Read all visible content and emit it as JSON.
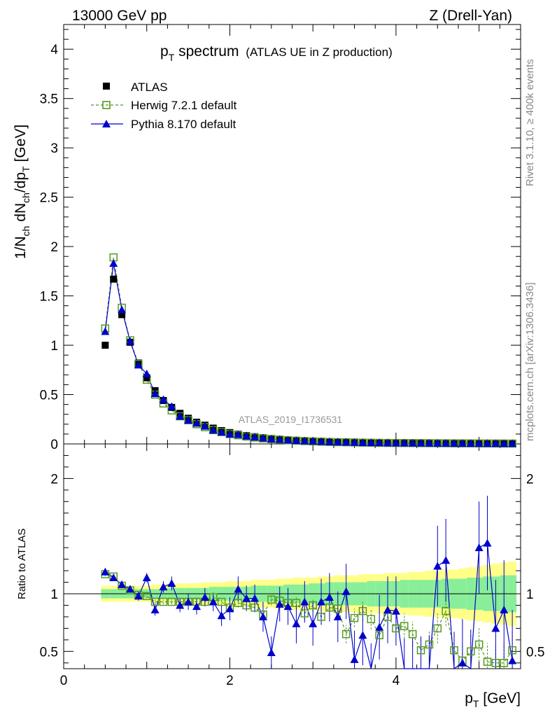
{
  "header": {
    "left": "13000 GeV pp",
    "right": "Z (Drell-Yan)"
  },
  "side": {
    "rivet": "Rivet 3.1.10, ≥ 400k events",
    "mcplots": "mcplots.cern.ch [arXiv:1306.3436]"
  },
  "chart_data": [
    {
      "type": "scatter",
      "title_main": "p",
      "title_sub": "T",
      "title_rest": " spectrum",
      "title_paren": "(ATLAS UE in Z production)",
      "analysis_label": "ATLAS_2019_I1736531",
      "ylabel": "1/N",
      "ylabel_sub1": "ch",
      "ylabel_mid": " dN",
      "ylabel_sub2": "ch",
      "ylabel_end": "/dp",
      "ylabel_sub3": "T",
      "ylabel_unit": " [GeV]",
      "xlim": [
        0,
        5.5
      ],
      "ylim": [
        0,
        4.25
      ],
      "yticks": [
        0,
        0.5,
        1,
        1.5,
        2,
        2.5,
        3,
        3.5,
        4
      ],
      "ytick_labels": [
        "0",
        "0.5",
        "1",
        "1.5",
        "2",
        "2.5",
        "3",
        "3.5",
        "4"
      ],
      "legend": [
        {
          "name": "ATLAS",
          "marker": "filled-square",
          "color": "#000000"
        },
        {
          "name": "Herwig 7.2.1 default",
          "marker": "open-square",
          "color": "#559922"
        },
        {
          "name": "Pythia 8.170 default",
          "marker": "filled-triangle",
          "color": "#0000cc"
        }
      ],
      "x": [
        0.5,
        0.6,
        0.7,
        0.8,
        0.9,
        1.0,
        1.1,
        1.2,
        1.3,
        1.4,
        1.5,
        1.6,
        1.7,
        1.8,
        1.9,
        2.0,
        2.1,
        2.2,
        2.3,
        2.4,
        2.5,
        2.6,
        2.7,
        2.8,
        2.9,
        3.0,
        3.1,
        3.2,
        3.3,
        3.4,
        3.5,
        3.6,
        3.7,
        3.8,
        3.9,
        4.0,
        4.1,
        4.2,
        4.3,
        4.4,
        4.5,
        4.6,
        4.7,
        4.8,
        4.9,
        5.0,
        5.1,
        5.2,
        5.3,
        5.4
      ],
      "series": [
        {
          "name": "ATLAS",
          "values": [
            1.0,
            1.67,
            1.31,
            1.03,
            0.82,
            0.67,
            0.54,
            0.44,
            0.37,
            0.31,
            0.26,
            0.22,
            0.19,
            0.16,
            0.135,
            0.115,
            0.098,
            0.085,
            0.073,
            0.063,
            0.055,
            0.048,
            0.042,
            0.037,
            0.033,
            0.029,
            0.026,
            0.023,
            0.021,
            0.019,
            0.017,
            0.015,
            0.014,
            0.013,
            0.012,
            0.011,
            0.01,
            0.0095,
            0.009,
            0.0085,
            0.008,
            0.0075,
            0.007,
            0.0068,
            0.0065,
            0.006,
            0.0058,
            0.0055,
            0.0053,
            0.005
          ]
        },
        {
          "name": "Herwig 7.2.1 default",
          "values": [
            1.17,
            1.89,
            1.38,
            1.05,
            0.81,
            0.65,
            0.5,
            0.41,
            0.34,
            0.28,
            0.24,
            0.2,
            0.17,
            0.14,
            0.12,
            0.1,
            0.088,
            0.075,
            0.065,
            0.056,
            0.049,
            0.043,
            0.037,
            0.033,
            0.029,
            0.026,
            0.023,
            0.02,
            0.018,
            0.017,
            0.015,
            0.013,
            0.012,
            0.011,
            0.01,
            0.0095,
            0.009,
            0.0085,
            0.008,
            0.0075,
            0.007,
            0.0065,
            0.006,
            0.0058,
            0.0055,
            0.005,
            0.0048,
            0.0045,
            0.0043,
            0.004
          ]
        },
        {
          "name": "Pythia 8.170 default",
          "values": [
            1.14,
            1.83,
            1.36,
            1.04,
            0.8,
            0.71,
            0.51,
            0.45,
            0.38,
            0.28,
            0.24,
            0.21,
            0.18,
            0.14,
            0.12,
            0.1,
            0.095,
            0.08,
            0.07,
            0.06,
            0.05,
            0.045,
            0.04,
            0.035,
            0.031,
            0.028,
            0.025,
            0.022,
            0.02,
            0.018,
            0.016,
            0.014,
            0.013,
            0.012,
            0.011,
            0.01,
            0.0095,
            0.009,
            0.0085,
            0.008,
            0.0075,
            0.007,
            0.0065,
            0.006,
            0.0058,
            0.0055,
            0.005,
            0.0048,
            0.0045,
            0.0043
          ]
        }
      ]
    },
    {
      "type": "scatter",
      "title": "",
      "ylabel": "Ratio to ATLAS",
      "xlabel_main": "p",
      "xlabel_sub": "T",
      "xlabel_unit": " [GeV]",
      "xlim": [
        0,
        5.5
      ],
      "ylim": [
        0.35,
        2.3
      ],
      "xticks": [
        0,
        2,
        4
      ],
      "xtick_labels": [
        "0",
        "2",
        "4"
      ],
      "yticks": [
        0.5,
        1,
        2
      ],
      "ytick_labels": [
        "0.5",
        "1",
        "2"
      ],
      "band_inner": [
        0.04,
        0.04,
        0.04,
        0.04,
        0.04,
        0.04,
        0.04,
        0.04,
        0.05,
        0.05,
        0.05,
        0.05,
        0.05,
        0.06,
        0.06,
        0.06,
        0.06,
        0.06,
        0.07,
        0.07,
        0.07,
        0.07,
        0.08,
        0.08,
        0.08,
        0.09,
        0.09,
        0.1,
        0.1,
        0.1,
        0.1,
        0.1,
        0.11,
        0.11,
        0.11,
        0.11,
        0.12,
        0.12,
        0.12,
        0.12,
        0.12,
        0.13,
        0.13,
        0.13,
        0.14,
        0.14,
        0.15,
        0.15,
        0.16,
        0.16
      ],
      "band_outer": [
        0.07,
        0.07,
        0.07,
        0.07,
        0.07,
        0.07,
        0.08,
        0.08,
        0.08,
        0.09,
        0.09,
        0.09,
        0.1,
        0.1,
        0.1,
        0.11,
        0.11,
        0.11,
        0.12,
        0.12,
        0.12,
        0.13,
        0.13,
        0.14,
        0.14,
        0.14,
        0.15,
        0.15,
        0.16,
        0.16,
        0.16,
        0.17,
        0.17,
        0.17,
        0.18,
        0.18,
        0.18,
        0.19,
        0.19,
        0.2,
        0.2,
        0.21,
        0.21,
        0.22,
        0.23,
        0.24,
        0.25,
        0.26,
        0.27,
        0.28
      ],
      "series": [
        {
          "name": "Herwig 7.2.1 default",
          "values": [
            1.17,
            1.15,
            1.07,
            1.03,
            0.99,
            0.98,
            0.93,
            0.93,
            0.93,
            0.93,
            0.93,
            0.93,
            0.93,
            0.97,
            0.93,
            0.88,
            0.92,
            0.9,
            0.88,
            0.82,
            0.95,
            0.94,
            0.92,
            0.92,
            0.83,
            0.9,
            0.8,
            0.88,
            0.87,
            0.65,
            0.79,
            0.85,
            0.78,
            0.64,
            0.8,
            0.7,
            0.72,
            0.65,
            0.51,
            0.56,
            0.7,
            0.85,
            0.51,
            0.42,
            0.5,
            0.56,
            0.41,
            0.4,
            0.4,
            0.51
          ],
          "errors": [
            0.02,
            0.02,
            0.02,
            0.02,
            0.02,
            0.02,
            0.02,
            0.02,
            0.02,
            0.02,
            0.03,
            0.03,
            0.03,
            0.03,
            0.03,
            0.03,
            0.04,
            0.04,
            0.04,
            0.04,
            0.05,
            0.05,
            0.05,
            0.06,
            0.06,
            0.06,
            0.07,
            0.07,
            0.07,
            0.08,
            0.08,
            0.09,
            0.09,
            0.1,
            0.1,
            0.1,
            0.11,
            0.11,
            0.12,
            0.12,
            0.13,
            0.13,
            0.14,
            0.14,
            0.15,
            0.15,
            0.16,
            0.16,
            0.17,
            0.17
          ]
        },
        {
          "name": "Pythia 8.170 default",
          "values": [
            1.19,
            1.14,
            1.08,
            1.04,
            0.98,
            1.14,
            0.86,
            1.06,
            1.09,
            0.9,
            0.93,
            0.89,
            0.97,
            0.93,
            0.81,
            0.87,
            1.04,
            0.96,
            0.96,
            0.8,
            0.49,
            0.91,
            0.89,
            0.74,
            0.93,
            0.74,
            0.93,
            0.97,
            0.8,
            1.02,
            0.43,
            0.64,
            0.3,
            0.71,
            0.86,
            0.85,
            0.3,
            0.3,
            0.3,
            0.3,
            1.24,
            1.29,
            0.3,
            0.4,
            0.3,
            1.4,
            1.44,
            0.7,
            0.86,
            0.42
          ],
          "errors": [
            0.03,
            0.03,
            0.03,
            0.03,
            0.04,
            0.04,
            0.05,
            0.05,
            0.06,
            0.06,
            0.07,
            0.07,
            0.08,
            0.08,
            0.09,
            0.1,
            0.11,
            0.11,
            0.12,
            0.13,
            0.14,
            0.15,
            0.16,
            0.17,
            0.18,
            0.19,
            0.2,
            0.21,
            0.22,
            0.24,
            0.25,
            0.26,
            0.27,
            0.28,
            0.29,
            0.3,
            0.31,
            0.32,
            0.33,
            0.34,
            0.35,
            0.36,
            0.37,
            0.38,
            0.39,
            0.4,
            0.41,
            0.42,
            0.43,
            0.44
          ]
        }
      ]
    }
  ]
}
